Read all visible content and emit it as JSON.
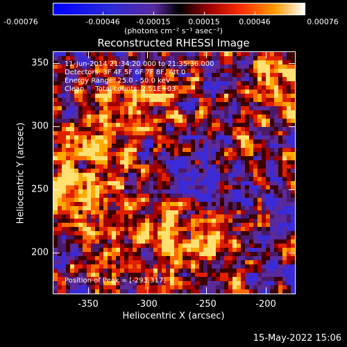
{
  "colorbar": {
    "tick_labels": [
      "-0.00076",
      "-0.00046",
      "-0.00015",
      "0.00015",
      "0.00046",
      "0.00076"
    ],
    "units": "(photons cm⁻² s⁻¹ asec⁻²)"
  },
  "title": "Reconstructed RHESSI Image",
  "info": {
    "time": "11-Jun-2014 21:34:20.000 to 21:35:36.000",
    "detectors": "Detectors: 3F 4F 5F 6F 7F 8F, Att 0",
    "energy": "Energy Range: 25.0 - 50.0 keV",
    "clean": "Clean     Total counts: 2.51E+03",
    "peak": "Position of Peak = [-293,317]"
  },
  "axes": {
    "xlabel": "Heliocentric X (arcsec)",
    "ylabel": "Heliocentric Y (arcsec)",
    "xticks": [
      "-350",
      "-300",
      "-250",
      "-200"
    ],
    "yticks": [
      "350",
      "300",
      "250",
      "200"
    ],
    "xlim": [
      -378,
      -186
    ],
    "ylim": [
      166,
      358
    ]
  },
  "datestamp": "15-May-2022 15:06"
}
